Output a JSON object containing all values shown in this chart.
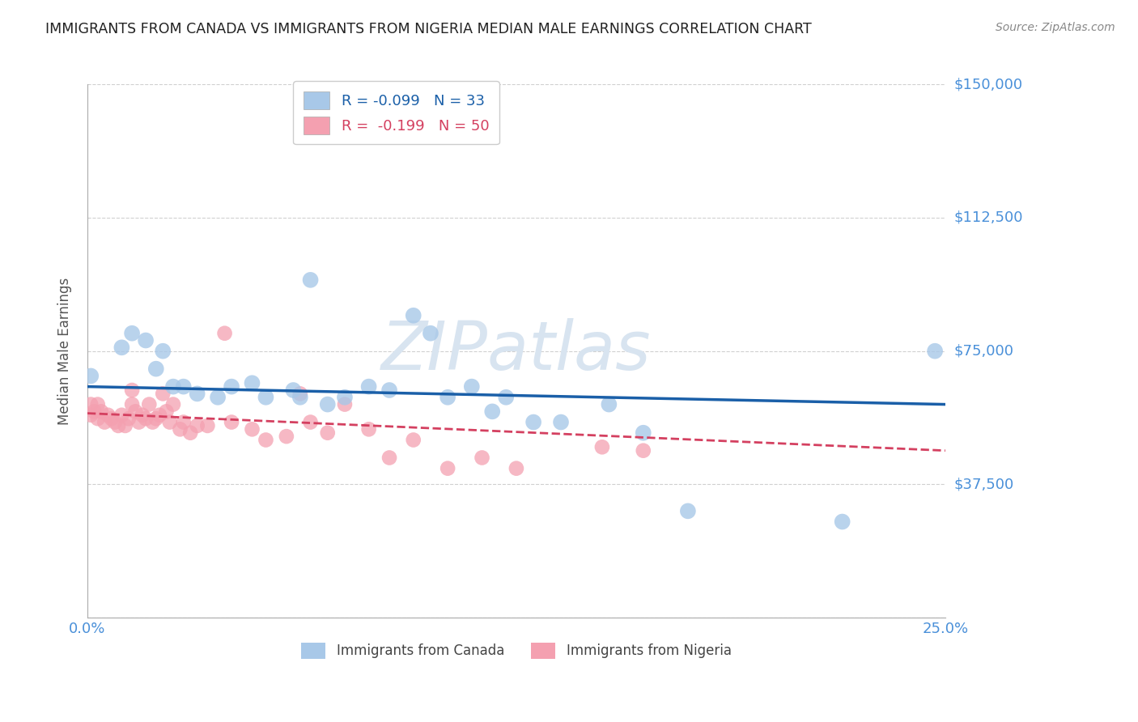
{
  "title": "IMMIGRANTS FROM CANADA VS IMMIGRANTS FROM NIGERIA MEDIAN MALE EARNINGS CORRELATION CHART",
  "source": "Source: ZipAtlas.com",
  "ylabel": "Median Male Earnings",
  "xlim": [
    0,
    0.25
  ],
  "ylim": [
    0,
    150000
  ],
  "yticks": [
    0,
    37500,
    75000,
    112500,
    150000
  ],
  "ytick_labels": [
    "",
    "$37,500",
    "$75,000",
    "$112,500",
    "$150,000"
  ],
  "xticks": [
    0.0,
    0.05,
    0.1,
    0.15,
    0.2,
    0.25
  ],
  "xtick_labels": [
    "0.0%",
    "",
    "",
    "",
    "",
    "25.0%"
  ],
  "canada_R": -0.099,
  "canada_N": 33,
  "nigeria_R": -0.199,
  "nigeria_N": 50,
  "canada_color": "#a8c8e8",
  "nigeria_color": "#f4a0b0",
  "canada_line_color": "#1a5fa8",
  "nigeria_line_color": "#d44060",
  "background_color": "#ffffff",
  "grid_color": "#d0d0d0",
  "watermark_color": "#d8e4f0",
  "title_color": "#222222",
  "axis_label_color": "#555555",
  "tick_label_color": "#4a90d9",
  "canada_x": [
    0.001,
    0.01,
    0.013,
    0.017,
    0.02,
    0.022,
    0.025,
    0.028,
    0.032,
    0.038,
    0.042,
    0.048,
    0.052,
    0.06,
    0.062,
    0.065,
    0.07,
    0.075,
    0.082,
    0.088,
    0.095,
    0.1,
    0.105,
    0.112,
    0.118,
    0.122,
    0.13,
    0.138,
    0.152,
    0.162,
    0.175,
    0.22,
    0.247
  ],
  "canada_y": [
    68000,
    76000,
    80000,
    78000,
    70000,
    75000,
    65000,
    65000,
    63000,
    62000,
    65000,
    66000,
    62000,
    64000,
    62000,
    95000,
    60000,
    62000,
    65000,
    64000,
    85000,
    80000,
    62000,
    65000,
    58000,
    62000,
    55000,
    55000,
    60000,
    52000,
    30000,
    27000,
    75000
  ],
  "nigeria_x": [
    0.001,
    0.001,
    0.002,
    0.003,
    0.003,
    0.004,
    0.005,
    0.006,
    0.007,
    0.008,
    0.009,
    0.01,
    0.011,
    0.012,
    0.013,
    0.013,
    0.014,
    0.015,
    0.016,
    0.017,
    0.018,
    0.019,
    0.02,
    0.021,
    0.022,
    0.023,
    0.024,
    0.025,
    0.027,
    0.028,
    0.03,
    0.032,
    0.035,
    0.04,
    0.042,
    0.048,
    0.052,
    0.058,
    0.062,
    0.065,
    0.07,
    0.075,
    0.082,
    0.088,
    0.095,
    0.105,
    0.115,
    0.125,
    0.15,
    0.162
  ],
  "nigeria_y": [
    57000,
    60000,
    58000,
    56000,
    60000,
    58000,
    55000,
    57000,
    56000,
    55000,
    54000,
    57000,
    54000,
    56000,
    64000,
    60000,
    58000,
    55000,
    57000,
    56000,
    60000,
    55000,
    56000,
    57000,
    63000,
    58000,
    55000,
    60000,
    53000,
    55000,
    52000,
    54000,
    54000,
    80000,
    55000,
    53000,
    50000,
    51000,
    63000,
    55000,
    52000,
    60000,
    53000,
    45000,
    50000,
    42000,
    45000,
    42000,
    48000,
    47000
  ],
  "canada_line_y0": 65000,
  "canada_line_y1": 60000,
  "nigeria_line_y0": 57500,
  "nigeria_line_y1": 47000
}
